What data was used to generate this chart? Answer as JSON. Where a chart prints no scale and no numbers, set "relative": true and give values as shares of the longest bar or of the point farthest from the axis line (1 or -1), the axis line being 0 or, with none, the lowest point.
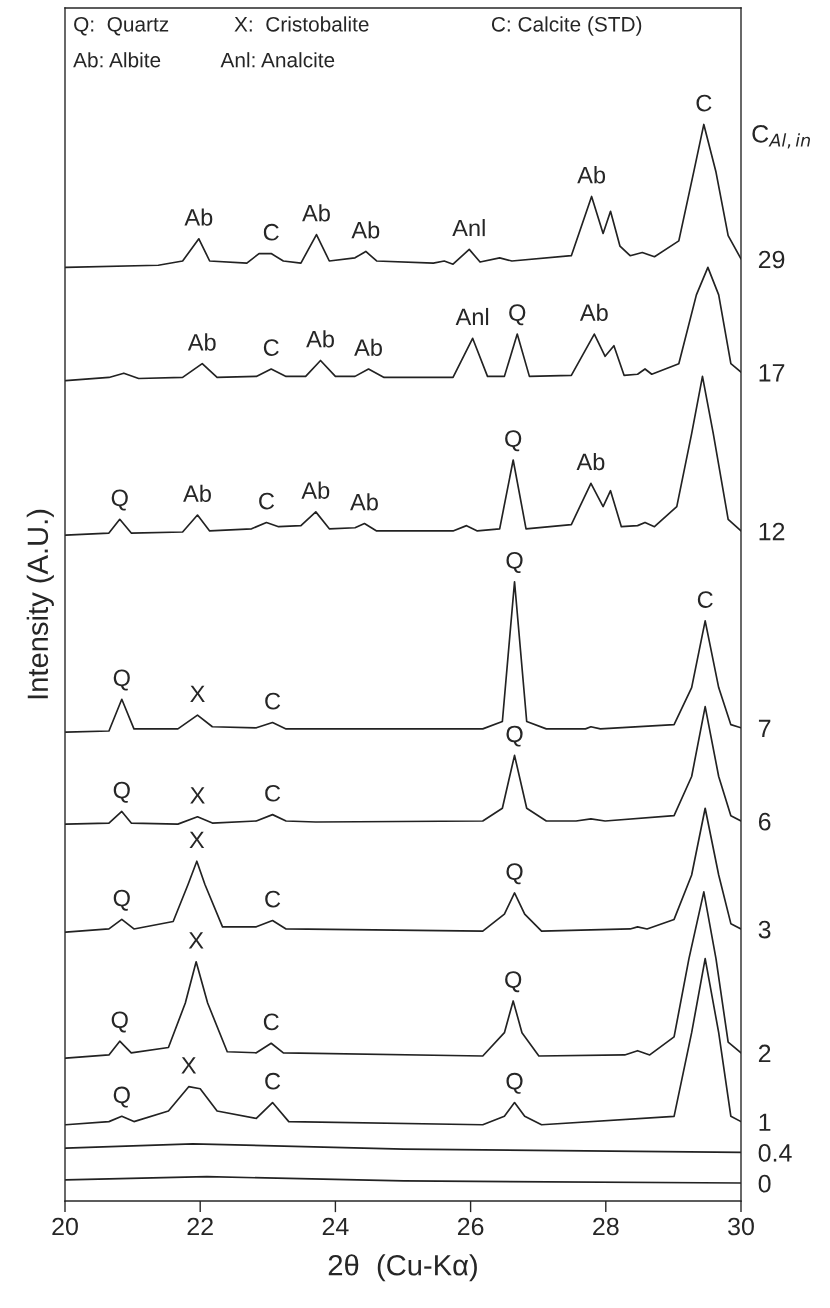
{
  "chart_data": {
    "type": "line",
    "relative": true,
    "xlabel": "2θ  (Cu-Kα)",
    "ylabel": "Intensity (A.U.)",
    "legend_title": "C$_{Al,in}$",
    "xlim": [
      20,
      30
    ],
    "xticks": [
      20,
      22,
      24,
      26,
      28,
      30
    ],
    "tick_labels": "x",
    "grid": false,
    "legend": false,
    "marker": "none",
    "line_style": "solid",
    "series": [
      {
        "name": "29",
        "color": "#222222",
        "x": [
          20.01,
          21.38,
          21.74,
          21.98,
          22.14,
          22.69,
          22.87,
          23.05,
          23.23,
          23.49,
          23.72,
          23.91,
          24.29,
          24.45,
          24.61,
          25.45,
          25.61,
          25.74,
          25.98,
          26.14,
          26.43,
          26.61,
          27.49,
          27.79,
          27.96,
          28.07,
          28.21,
          28.36,
          28.54,
          28.72,
          29.08,
          29.3,
          29.45,
          29.63,
          29.81,
          30.0
        ],
        "values": [
          0.865,
          0.867,
          0.871,
          0.892,
          0.871,
          0.869,
          0.878,
          0.878,
          0.871,
          0.869,
          0.896,
          0.871,
          0.874,
          0.88,
          0.871,
          0.869,
          0.871,
          0.868,
          0.882,
          0.87,
          0.874,
          0.871,
          0.876,
          0.932,
          0.897,
          0.918,
          0.885,
          0.876,
          0.879,
          0.875,
          0.89,
          0.955,
          1.0,
          0.955,
          0.895,
          0.873
        ]
      },
      {
        "name": "17",
        "color": "#222222",
        "x": [
          20.01,
          20.65,
          20.87,
          21.09,
          21.74,
          22.03,
          22.25,
          22.83,
          23.05,
          23.27,
          23.56,
          23.78,
          24.0,
          24.29,
          24.49,
          24.72,
          25.74,
          26.03,
          26.25,
          26.5,
          26.69,
          26.87,
          27.49,
          27.83,
          27.99,
          28.12,
          28.27,
          28.47,
          28.58,
          28.68,
          29.08,
          29.34,
          29.51,
          29.67,
          29.85,
          30.0
        ],
        "values": [
          0.758,
          0.761,
          0.765,
          0.76,
          0.761,
          0.774,
          0.761,
          0.762,
          0.769,
          0.762,
          0.762,
          0.777,
          0.762,
          0.762,
          0.769,
          0.761,
          0.761,
          0.798,
          0.762,
          0.762,
          0.802,
          0.762,
          0.763,
          0.802,
          0.781,
          0.791,
          0.763,
          0.764,
          0.769,
          0.764,
          0.774,
          0.839,
          0.865,
          0.839,
          0.774,
          0.766
        ]
      },
      {
        "name": "12",
        "color": "#222222",
        "x": [
          20.01,
          20.65,
          20.81,
          20.98,
          21.74,
          21.96,
          22.14,
          22.76,
          22.98,
          23.16,
          23.49,
          23.71,
          23.91,
          24.29,
          24.43,
          24.61,
          25.74,
          25.94,
          26.1,
          26.43,
          26.63,
          26.82,
          27.49,
          27.78,
          27.96,
          28.07,
          28.23,
          28.47,
          28.58,
          28.72,
          29.05,
          29.27,
          29.43,
          29.59,
          29.81,
          30.0
        ],
        "values": [
          0.612,
          0.614,
          0.627,
          0.614,
          0.615,
          0.631,
          0.616,
          0.618,
          0.624,
          0.62,
          0.621,
          0.634,
          0.618,
          0.619,
          0.623,
          0.616,
          0.616,
          0.621,
          0.616,
          0.618,
          0.683,
          0.618,
          0.622,
          0.661,
          0.639,
          0.654,
          0.62,
          0.621,
          0.624,
          0.62,
          0.639,
          0.708,
          0.762,
          0.708,
          0.627,
          0.616
        ]
      },
      {
        "name": "7",
        "color": "#222222",
        "x": [
          20.01,
          20.65,
          20.84,
          21.02,
          21.67,
          21.96,
          22.18,
          22.83,
          23.07,
          23.27,
          26.18,
          26.47,
          26.65,
          26.83,
          27.12,
          27.7,
          27.78,
          27.92,
          29.01,
          29.27,
          29.47,
          29.67,
          29.85,
          30.0
        ],
        "values": [
          0.426,
          0.427,
          0.457,
          0.429,
          0.429,
          0.442,
          0.431,
          0.43,
          0.435,
          0.429,
          0.429,
          0.436,
          0.568,
          0.436,
          0.429,
          0.429,
          0.431,
          0.429,
          0.433,
          0.468,
          0.531,
          0.468,
          0.433,
          0.43
        ]
      },
      {
        "name": "6",
        "color": "#222222",
        "x": [
          20.01,
          20.65,
          20.84,
          20.98,
          21.67,
          21.96,
          22.18,
          22.83,
          23.07,
          23.27,
          23.71,
          26.18,
          26.47,
          26.65,
          26.83,
          27.12,
          27.56,
          27.78,
          27.99,
          29.01,
          29.27,
          29.47,
          29.67,
          29.85,
          30.0
        ],
        "values": [
          0.339,
          0.34,
          0.351,
          0.34,
          0.339,
          0.346,
          0.34,
          0.342,
          0.348,
          0.342,
          0.341,
          0.342,
          0.354,
          0.404,
          0.354,
          0.342,
          0.342,
          0.344,
          0.342,
          0.347,
          0.384,
          0.45,
          0.384,
          0.347,
          0.342
        ]
      },
      {
        "name": "3",
        "color": "#222222",
        "x": [
          20.01,
          20.65,
          20.84,
          21.02,
          21.6,
          21.82,
          21.95,
          22.07,
          22.33,
          22.83,
          23.07,
          23.27,
          26.18,
          26.5,
          26.65,
          26.8,
          27.05,
          28.36,
          28.47,
          28.61,
          29.01,
          29.27,
          29.47,
          29.67,
          29.85,
          30.0
        ],
        "values": [
          0.237,
          0.24,
          0.249,
          0.24,
          0.247,
          0.282,
          0.304,
          0.282,
          0.242,
          0.242,
          0.248,
          0.24,
          0.238,
          0.254,
          0.274,
          0.254,
          0.238,
          0.24,
          0.242,
          0.24,
          0.249,
          0.291,
          0.354,
          0.291,
          0.245,
          0.24
        ]
      },
      {
        "name": "2",
        "color": "#222222",
        "x": [
          20.01,
          20.65,
          20.81,
          20.98,
          21.53,
          21.78,
          21.94,
          22.11,
          22.4,
          22.83,
          23.05,
          23.23,
          26.18,
          26.5,
          26.63,
          26.76,
          27.01,
          28.28,
          28.47,
          28.65,
          29.01,
          29.23,
          29.45,
          29.63,
          29.81,
          30.0
        ],
        "values": [
          0.118,
          0.121,
          0.134,
          0.123,
          0.128,
          0.17,
          0.209,
          0.17,
          0.124,
          0.123,
          0.132,
          0.123,
          0.12,
          0.142,
          0.172,
          0.142,
          0.12,
          0.121,
          0.125,
          0.121,
          0.138,
          0.212,
          0.275,
          0.212,
          0.133,
          0.123
        ]
      },
      {
        "name": "1",
        "color": "#222222",
        "x": [
          20.01,
          20.65,
          20.84,
          21.02,
          21.53,
          21.83,
          22.0,
          22.25,
          22.83,
          23.07,
          23.31,
          26.18,
          26.5,
          26.65,
          26.8,
          27.05,
          29.01,
          29.27,
          29.47,
          29.67,
          29.85,
          30.0
        ],
        "values": [
          0.055,
          0.058,
          0.063,
          0.058,
          0.068,
          0.091,
          0.089,
          0.068,
          0.061,
          0.076,
          0.058,
          0.055,
          0.063,
          0.076,
          0.063,
          0.055,
          0.063,
          0.142,
          0.212,
          0.142,
          0.063,
          0.058
        ]
      },
      {
        "name": "0.4",
        "color": "#222222",
        "x": [
          20.01,
          21.89,
          25.01,
          30.0
        ],
        "values": [
          0.033,
          0.037,
          0.032,
          0.029
        ]
      },
      {
        "name": "0",
        "color": "#222222",
        "x": [
          20.01,
          22.1,
          25.01,
          30.0
        ],
        "values": [
          0.003,
          0.006,
          0.002,
          0.0
        ]
      }
    ],
    "annotations": [
      "Q:  Quartz",
      "X:  Cristobalite",
      "C: Calcite (STD)",
      "Ab: Albite",
      "Anl: Analcite",
      {
        "text": "Ab",
        "x": 21.98,
        "y": 0.892
      },
      {
        "text": "C",
        "x": 23.05,
        "y": 0.878
      },
      {
        "text": "Ab",
        "x": 23.72,
        "y": 0.896
      },
      {
        "text": "Ab",
        "x": 24.45,
        "y": 0.88
      },
      {
        "text": "Anl",
        "x": 25.98,
        "y": 0.882
      },
      {
        "text": "Ab",
        "x": 27.79,
        "y": 0.932
      },
      {
        "text": "C",
        "x": 29.45,
        "y": 1.0
      },
      {
        "text": "Ab",
        "x": 22.03,
        "y": 0.774
      },
      {
        "text": "C",
        "x": 23.05,
        "y": 0.769
      },
      {
        "text": "Ab",
        "x": 23.78,
        "y": 0.777
      },
      {
        "text": "Ab",
        "x": 24.49,
        "y": 0.769
      },
      {
        "text": "Anl",
        "x": 26.03,
        "y": 0.798
      },
      {
        "text": "Q",
        "x": 26.69,
        "y": 0.802
      },
      {
        "text": "Ab",
        "x": 27.83,
        "y": 0.802
      },
      {
        "text": "Q",
        "x": 20.81,
        "y": 0.627
      },
      {
        "text": "Ab",
        "x": 21.96,
        "y": 0.631
      },
      {
        "text": "C",
        "x": 22.98,
        "y": 0.624
      },
      {
        "text": "Ab",
        "x": 23.71,
        "y": 0.634
      },
      {
        "text": "Ab",
        "x": 24.43,
        "y": 0.623
      },
      {
        "text": "Q",
        "x": 26.63,
        "y": 0.683
      },
      {
        "text": "Ab",
        "x": 27.78,
        "y": 0.661
      },
      {
        "text": "Q",
        "x": 20.84,
        "y": 0.457
      },
      {
        "text": "X",
        "x": 21.96,
        "y": 0.442
      },
      {
        "text": "C",
        "x": 23.07,
        "y": 0.435
      },
      {
        "text": "Q",
        "x": 26.65,
        "y": 0.568
      },
      {
        "text": "C",
        "x": 29.47,
        "y": 0.531
      },
      {
        "text": "Q",
        "x": 20.84,
        "y": 0.351
      },
      {
        "text": "X",
        "x": 21.96,
        "y": 0.346
      },
      {
        "text": "C",
        "x": 23.07,
        "y": 0.348
      },
      {
        "text": "Q",
        "x": 26.65,
        "y": 0.404
      },
      {
        "text": "Q",
        "x": 20.84,
        "y": 0.249
      },
      {
        "text": "X",
        "x": 21.95,
        "y": 0.304
      },
      {
        "text": "C",
        "x": 23.07,
        "y": 0.248
      },
      {
        "text": "Q",
        "x": 26.65,
        "y": 0.274
      },
      {
        "text": "Q",
        "x": 20.81,
        "y": 0.134
      },
      {
        "text": "X",
        "x": 21.94,
        "y": 0.209
      },
      {
        "text": "C",
        "x": 23.05,
        "y": 0.132
      },
      {
        "text": "Q",
        "x": 26.63,
        "y": 0.172
      },
      {
        "text": "Q",
        "x": 20.84,
        "y": 0.063
      },
      {
        "text": "X",
        "x": 21.83,
        "y": 0.091
      },
      {
        "text": "C",
        "x": 23.07,
        "y": 0.076
      },
      {
        "text": "Q",
        "x": 26.65,
        "y": 0.076
      }
    ]
  }
}
